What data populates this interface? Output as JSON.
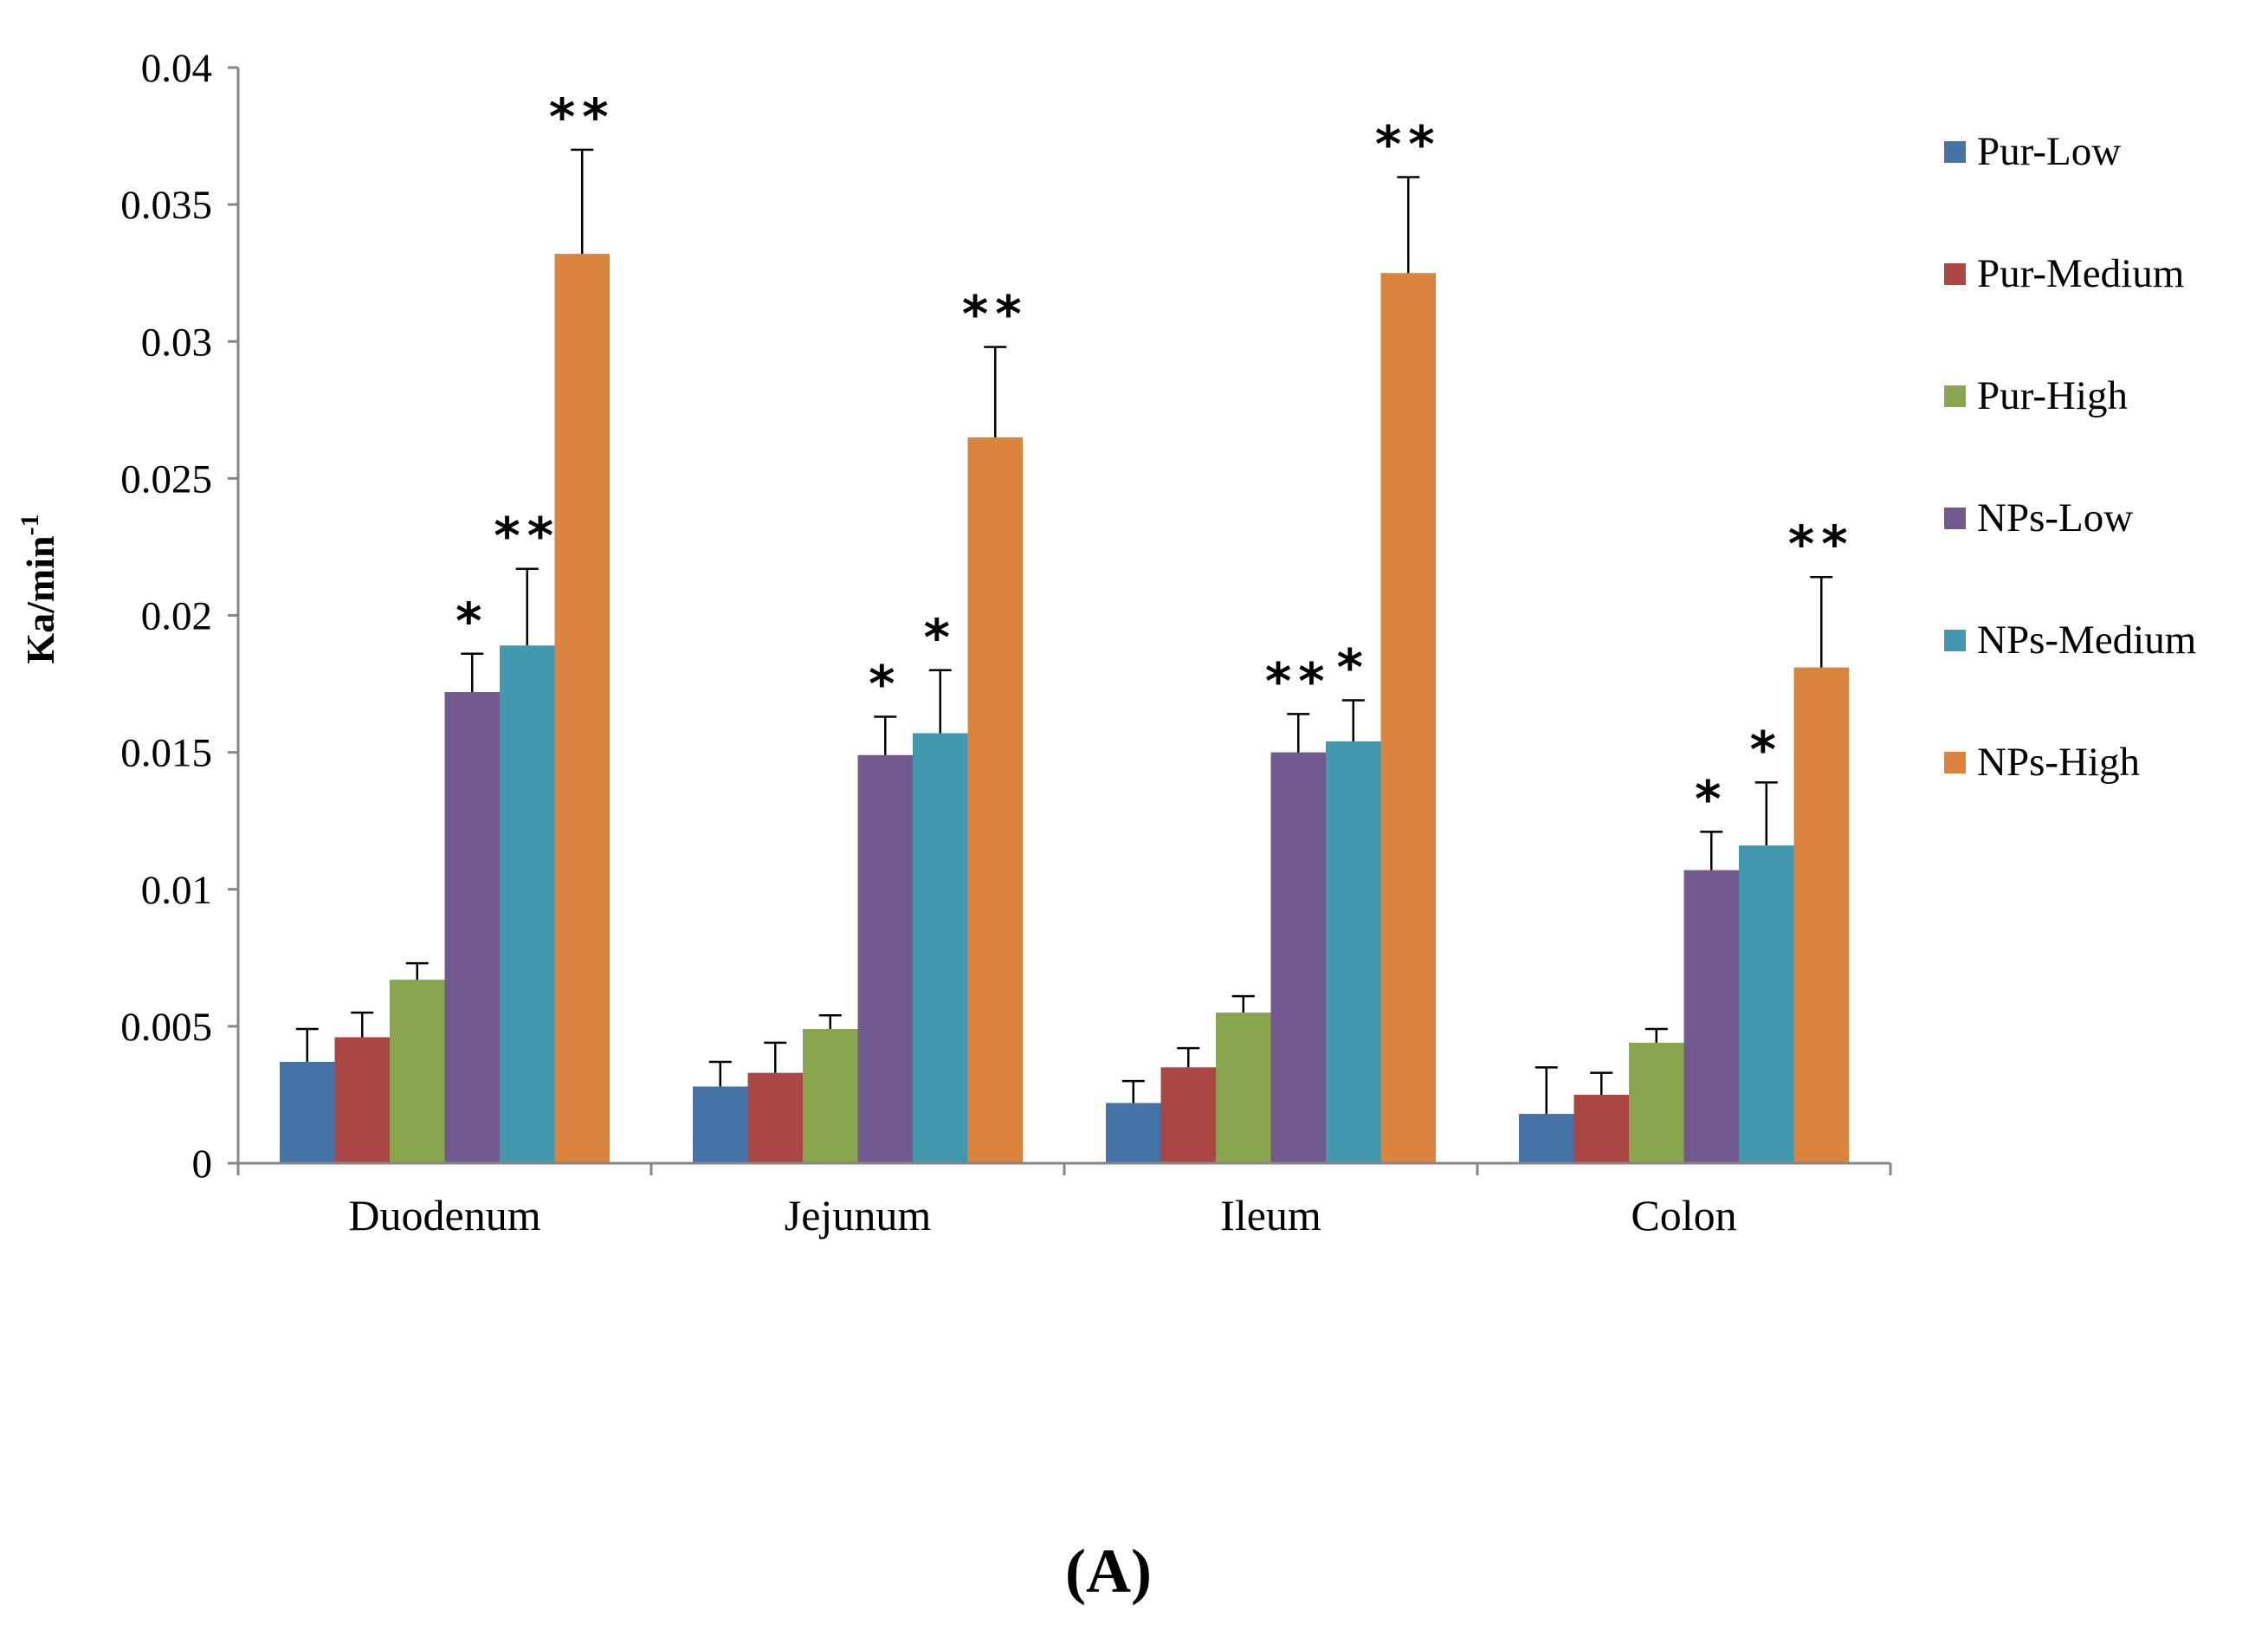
{
  "chart_data": {
    "type": "bar",
    "ylabel": "Ka/min",
    "ylabel_superscript": "-1",
    "ylim": [
      0,
      0.04
    ],
    "yticks": [
      "0",
      "0.005",
      "0.01",
      "0.015",
      "0.02",
      "0.025",
      "0.03",
      "0.035",
      "0.04"
    ],
    "categories": [
      "Duodenum",
      "Jejunum",
      "Ileum",
      "Colon"
    ],
    "series": [
      {
        "name": "Pur-Low",
        "color": "#4572a7",
        "values": [
          0.0037,
          0.0028,
          0.0022,
          0.0018
        ],
        "errors": [
          0.0012,
          0.0009,
          0.0008,
          0.0017
        ],
        "sig": [
          "",
          "",
          "",
          ""
        ]
      },
      {
        "name": "Pur-Medium",
        "color": "#aa4643",
        "values": [
          0.0046,
          0.0033,
          0.0035,
          0.0025
        ],
        "errors": [
          0.0009,
          0.0011,
          0.0007,
          0.0008
        ],
        "sig": [
          "",
          "",
          "",
          ""
        ]
      },
      {
        "name": "Pur-High",
        "color": "#89a54e",
        "values": [
          0.0067,
          0.0049,
          0.0055,
          0.0044
        ],
        "errors": [
          0.0006,
          0.0005,
          0.0006,
          0.0005
        ],
        "sig": [
          "",
          "",
          "",
          ""
        ]
      },
      {
        "name": "NPs-Low",
        "color": "#71588f",
        "values": [
          0.0172,
          0.0149,
          0.015,
          0.0107
        ],
        "errors": [
          0.0014,
          0.0014,
          0.0014,
          0.0014
        ],
        "sig": [
          "*",
          "*",
          "**",
          "*"
        ]
      },
      {
        "name": "NPs-Medium",
        "color": "#4198af",
        "values": [
          0.0189,
          0.0157,
          0.0154,
          0.0116
        ],
        "errors": [
          0.0028,
          0.0023,
          0.0015,
          0.0023
        ],
        "sig": [
          "**",
          "*",
          "*",
          "*"
        ]
      },
      {
        "name": "NPs-High",
        "color": "#db843d",
        "values": [
          0.0332,
          0.0265,
          0.0325,
          0.0181
        ],
        "errors": [
          0.0038,
          0.0033,
          0.0035,
          0.0033
        ],
        "sig": [
          "**",
          "**",
          "**",
          "**"
        ]
      }
    ],
    "legend_position": "right",
    "panel_label": "(A)"
  }
}
